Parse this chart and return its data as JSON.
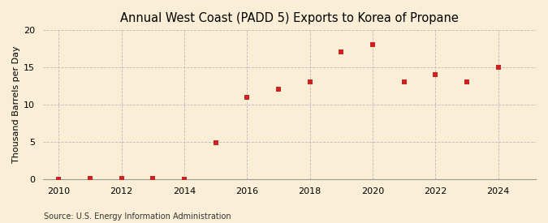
{
  "title": "Annual West Coast (PADD 5) Exports to Korea of Propane",
  "ylabel": "Thousand Barrels per Day",
  "source": "Source: U.S. Energy Information Administration",
  "years": [
    2010,
    2011,
    2012,
    2013,
    2014,
    2015,
    2016,
    2017,
    2018,
    2019,
    2020,
    2021,
    2022,
    2023,
    2024
  ],
  "values": [
    0.05,
    0.1,
    0.1,
    0.1,
    0.05,
    4.9,
    11.0,
    12.0,
    13.0,
    17.0,
    18.0,
    13.0,
    14.0,
    13.0,
    15.0
  ],
  "marker_color": "#cc2222",
  "marker": "s",
  "marker_size": 4,
  "bg_color": "#faefd6",
  "grid_color": "#bbbbbb",
  "grid_style": "--",
  "xlim": [
    2009.5,
    2025.2
  ],
  "ylim": [
    0,
    20
  ],
  "yticks": [
    0,
    5,
    10,
    15,
    20
  ],
  "xticks": [
    2010,
    2012,
    2014,
    2016,
    2018,
    2020,
    2022,
    2024
  ],
  "title_fontsize": 10.5,
  "ylabel_fontsize": 8,
  "tick_fontsize": 8,
  "source_fontsize": 7
}
